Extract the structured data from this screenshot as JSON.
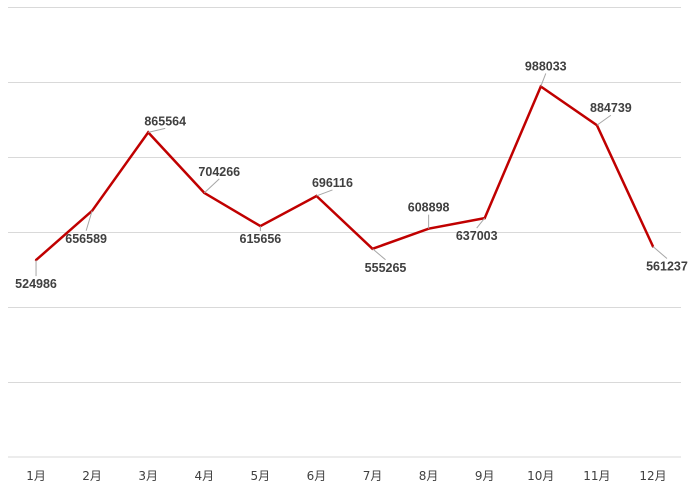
{
  "chart_data": {
    "type": "line",
    "title": "",
    "xlabel": "",
    "ylabel": "",
    "categories": [
      "1月",
      "2月",
      "3月",
      "4月",
      "5月",
      "6月",
      "7月",
      "8月",
      "9月",
      "10月",
      "11月",
      "12月"
    ],
    "series": [
      {
        "values": [
          524986,
          656589,
          865564,
          704266,
          615656,
          696116,
          555265,
          608898,
          637003,
          988033,
          884739,
          561237
        ],
        "color": "#c00000"
      }
    ],
    "ylim": [
      0,
      1200000
    ],
    "ytick_step": 200000,
    "show_y_tick_labels": false,
    "grid": true,
    "legend": "none",
    "data_labels": true
  }
}
